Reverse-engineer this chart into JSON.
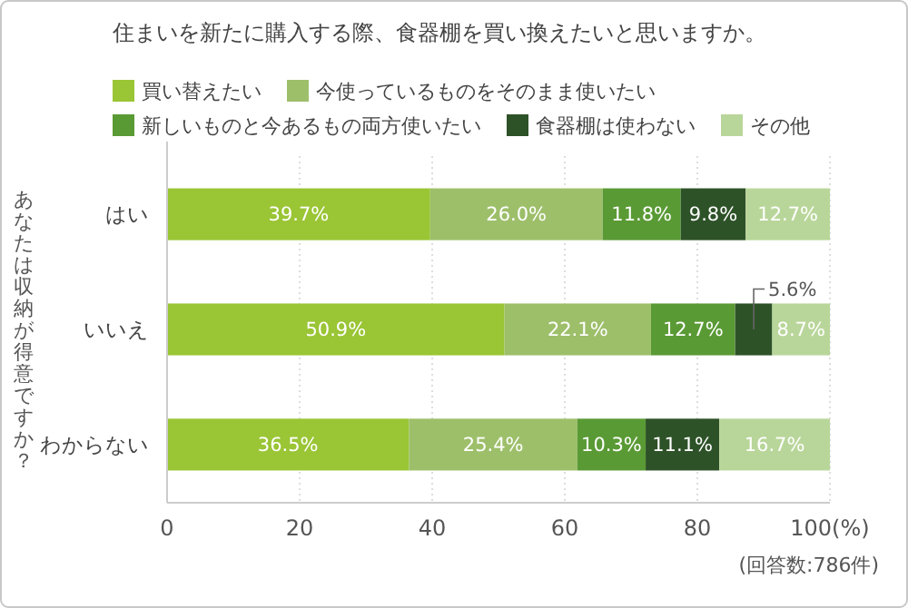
{
  "chart_data": {
    "type": "bar",
    "orientation": "horizontal",
    "stacked": true,
    "title": "住まいを新たに購入する際、食器棚を買い換えたいと思いますか。",
    "ylabel": "あなたは収納が得意ですか？",
    "categories": [
      "はい",
      "いいえ",
      "わからない"
    ],
    "series": [
      {
        "name": "買い替えたい",
        "color": "#9ac535",
        "values": [
          39.7,
          50.9,
          36.5
        ],
        "value_labels": [
          "39.7%",
          "50.9%",
          "36.5%"
        ]
      },
      {
        "name": "今使っているものをそのまま使いたい",
        "color": "#9dbf6a",
        "values": [
          26.0,
          22.1,
          25.4
        ],
        "value_labels": [
          "26.0%",
          "22.1%",
          "25.4%"
        ]
      },
      {
        "name": "新しいものと今あるもの両方使いたい",
        "color": "#5a9a35",
        "values": [
          11.8,
          12.7,
          10.3
        ],
        "value_labels": [
          "11.8%",
          "12.7%",
          "10.3%"
        ]
      },
      {
        "name": "食器棚は使わない",
        "color": "#2e5228",
        "values": [
          9.8,
          5.6,
          11.1
        ],
        "value_labels": [
          "9.8%",
          "5.6%",
          "11.1%"
        ]
      },
      {
        "name": "その他",
        "color": "#b9d69a",
        "values": [
          12.7,
          8.7,
          16.7
        ],
        "value_labels": [
          "12.7%",
          "8.7%",
          "16.7%"
        ]
      }
    ],
    "xlim": [
      0,
      100
    ],
    "xticks": [
      0,
      20,
      40,
      60,
      80,
      {
        "value": 100,
        "label": "100(%)"
      }
    ],
    "grid": "x",
    "legend": "top",
    "annotations": [
      "(回答数:786件)"
    ]
  }
}
